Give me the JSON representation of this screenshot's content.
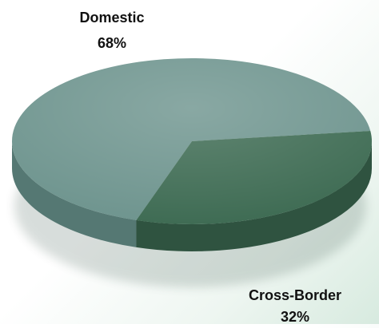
{
  "chart_data": {
    "type": "pie",
    "title": "",
    "slices": [
      {
        "label": "Domestic",
        "value": 68,
        "display": "68%",
        "color": "#6f958f",
        "side_color": "#557873"
      },
      {
        "label": "Cross-Border",
        "value": 32,
        "display": "32%",
        "color": "#3f6c54",
        "side_color": "#2f5340"
      }
    ],
    "legend": "none",
    "style": "3d-tilted"
  }
}
